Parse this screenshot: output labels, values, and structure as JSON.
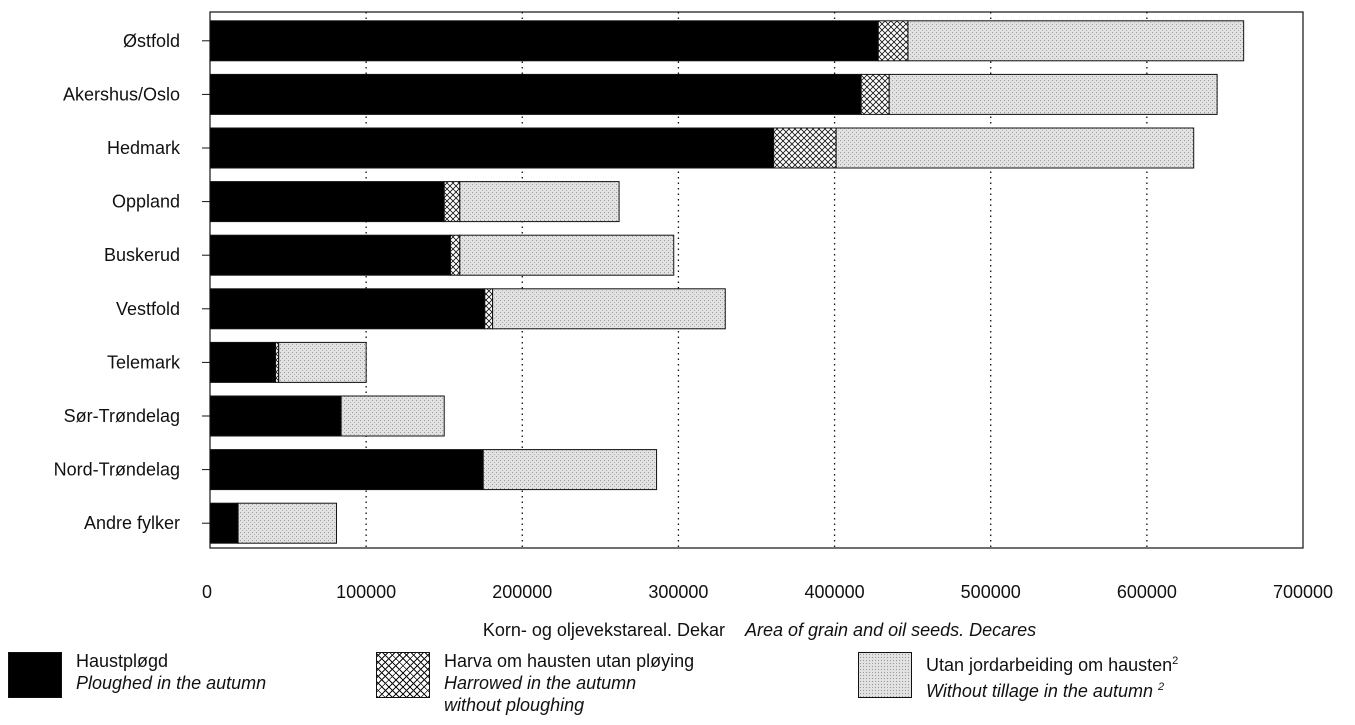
{
  "chart_data": {
    "type": "bar",
    "orientation": "horizontal",
    "stacked": true,
    "categories": [
      "Østfold",
      "Akershus/Oslo",
      "Hedmark",
      "Oppland",
      "Buskerud",
      "Vestfold",
      "Telemark",
      "Sør-Trøndelag",
      "Nord-Trøndelag",
      "Andre fylker"
    ],
    "series": [
      {
        "name": "Haustpløgd",
        "values": [
          428000,
          417000,
          361000,
          150000,
          154000,
          176000,
          42000,
          84000,
          175000,
          18000
        ]
      },
      {
        "name": "Harva om hausten utan pløying",
        "values": [
          19000,
          18000,
          40000,
          10000,
          6000,
          5000,
          2000,
          0,
          0,
          0
        ]
      },
      {
        "name": "Utan jordarbeiding om hausten",
        "values": [
          215000,
          210000,
          229000,
          102000,
          137000,
          149000,
          56000,
          66000,
          111000,
          63000
        ]
      }
    ],
    "xlim": [
      0,
      700000
    ],
    "xticks": [
      "0",
      "100000",
      "200000",
      "300000",
      "400000",
      "500000",
      "600000",
      "700000"
    ],
    "xlabel": "Korn- og oljevekstareal. Dekar",
    "xlabel_en": "Area of grain and oil seeds. Decares",
    "grid": "vertical dotted",
    "legend_position": "bottom"
  },
  "legend": [
    {
      "label": "Haustpløgd",
      "label_en": "Ploughed in the autumn",
      "color": "#000000",
      "pattern": "solid"
    },
    {
      "label": "Harva om hausten utan pløying",
      "label_en": "Harrowed in the autumn",
      "label_en2": "without ploughing",
      "color": "#ffffff",
      "pattern": "crosshatch"
    },
    {
      "label": "Utan jordarbeiding om hausten",
      "label_sup": "2",
      "label_en": "Without tillage in the autumn",
      "label_en_sup": "2",
      "color": "#dcdcdc",
      "pattern": "stipple"
    }
  ]
}
